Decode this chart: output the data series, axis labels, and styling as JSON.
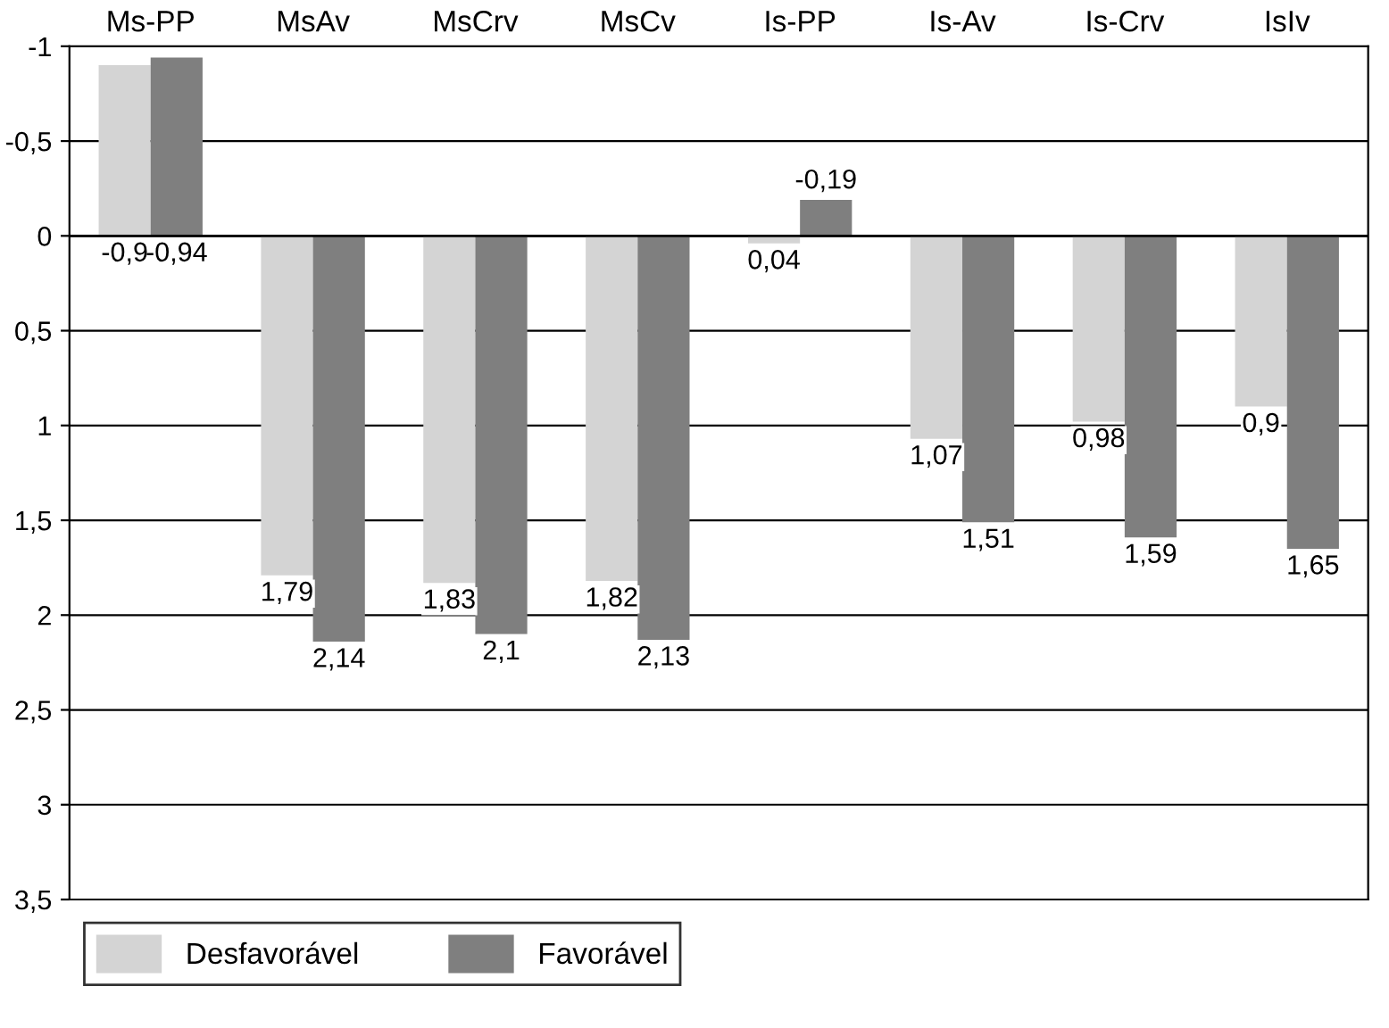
{
  "chart_data": {
    "type": "bar",
    "categories": [
      "Ms-PP",
      "MsAv",
      "MsCrv",
      "MsCv",
      "Is-PP",
      "Is-Av",
      "Is-Crv",
      "IsIv"
    ],
    "series": [
      {
        "name": "Desfavorável",
        "color": "#d4d4d4",
        "values": [
          -0.9,
          1.79,
          1.83,
          1.82,
          0.04,
          1.07,
          0.98,
          0.9
        ],
        "value_labels": [
          "-0,9",
          "1,79",
          "1,83",
          "1,82",
          "0,04",
          "1,07",
          "0,98",
          "0,9"
        ]
      },
      {
        "name": "Favorável",
        "color": "#7f7f7f",
        "values": [
          -0.94,
          2.14,
          2.1,
          2.13,
          -0.19,
          1.51,
          1.59,
          1.65
        ],
        "value_labels": [
          "-0,94",
          "2,14",
          "2,1",
          "2,13",
          "-0,19",
          "1,51",
          "1,59",
          "1,65"
        ]
      }
    ],
    "ylim": [
      3.5,
      -1
    ],
    "yticks": [
      -1,
      {
        "value": -0.5,
        "label": "-0,5"
      },
      0,
      {
        "value": 0.5,
        "label": "0,5"
      },
      1,
      {
        "value": 1.5,
        "label": "1,5"
      },
      2,
      {
        "value": 2.5,
        "label": "2,5"
      },
      3,
      {
        "value": 3.5,
        "label": "3,5"
      }
    ],
    "grid": "y",
    "legend": "bottom left"
  }
}
